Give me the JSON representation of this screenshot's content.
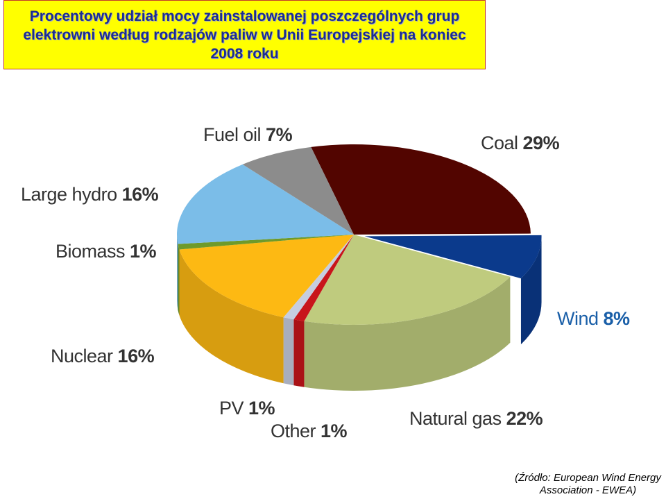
{
  "chart_data": {
    "type": "pie",
    "title": "Procentowy udział mocy zainstalowanej poszczególnych grup elektrowni według rodzajów paliw w Unii Europejskiej na koniec 2008 roku",
    "note": "(Źródło: European Wind Energy Association - EWEA)",
    "categories": [
      "Coal",
      "Wind",
      "Natural gas",
      "Other",
      "PV",
      "Nuclear",
      "Biomass",
      "Large hydro",
      "Fuel oil"
    ],
    "values": [
      29,
      8,
      22,
      1,
      1,
      16,
      1,
      16,
      7
    ],
    "value_labels": [
      "29%",
      "8%",
      "22%",
      "1%",
      "1%",
      "16%",
      "1%",
      "16%",
      "7%"
    ],
    "colors": [
      "#520500",
      "#0b3a8c",
      "#bfcb7e",
      "#c8151b",
      "#c6cde0",
      "#fdb913",
      "#6e9a2a",
      "#7bbde8",
      "#8c8c8c"
    ],
    "exploded": [
      "Wind"
    ]
  }
}
